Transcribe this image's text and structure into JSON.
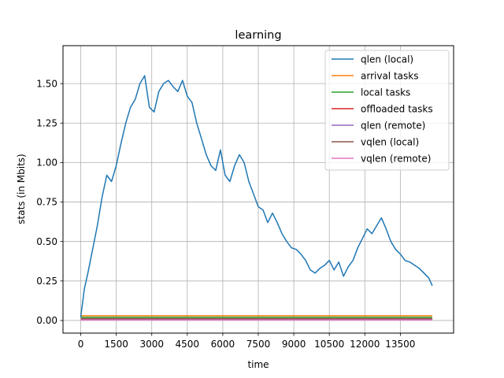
{
  "chart_data": {
    "type": "line",
    "title": "learning",
    "xlabel": "time",
    "ylabel": "stats (in Mbits)",
    "xlim": [
      -750,
      15750
    ],
    "ylim": [
      -0.08,
      1.74
    ],
    "xticks": [
      0,
      1500,
      3000,
      4500,
      6000,
      7500,
      9000,
      10500,
      12000,
      13500
    ],
    "xtick_labels": [
      "0",
      "1500",
      "3000",
      "4500",
      "6000",
      "7500",
      "9000",
      "10500",
      "12000",
      "13500"
    ],
    "yticks": [
      0.0,
      0.25,
      0.5,
      0.75,
      1.0,
      1.25,
      1.5
    ],
    "ytick_labels": [
      "0.00",
      "0.25",
      "0.50",
      "0.75",
      "1.00",
      "1.25",
      "1.50"
    ],
    "grid": true,
    "legend_position": "top-right",
    "series": [
      {
        "name": "qlen (local)",
        "color": "#1f77b4",
        "x": [
          0,
          150,
          300,
          500,
          700,
          900,
          1100,
          1300,
          1500,
          1700,
          1900,
          2100,
          2300,
          2500,
          2700,
          2900,
          3100,
          3300,
          3500,
          3700,
          3900,
          4100,
          4300,
          4500,
          4700,
          4900,
          5100,
          5300,
          5500,
          5700,
          5900,
          6100,
          6300,
          6500,
          6700,
          6900,
          7100,
          7300,
          7500,
          7700,
          7900,
          8100,
          8300,
          8500,
          8700,
          8900,
          9100,
          9300,
          9500,
          9700,
          9900,
          10100,
          10300,
          10500,
          10700,
          10900,
          11100,
          11300,
          11500,
          11700,
          11900,
          12100,
          12300,
          12500,
          12700,
          12900,
          13100,
          13300,
          13500,
          13700,
          13900,
          14100,
          14300,
          14500,
          14700,
          14850
        ],
        "values": [
          0.02,
          0.2,
          0.3,
          0.45,
          0.6,
          0.78,
          0.92,
          0.88,
          0.98,
          1.12,
          1.25,
          1.35,
          1.4,
          1.5,
          1.55,
          1.35,
          1.32,
          1.45,
          1.5,
          1.52,
          1.48,
          1.45,
          1.52,
          1.42,
          1.38,
          1.25,
          1.15,
          1.05,
          0.98,
          0.95,
          1.08,
          0.92,
          0.88,
          0.98,
          1.05,
          1.0,
          0.88,
          0.8,
          0.72,
          0.7,
          0.62,
          0.68,
          0.62,
          0.55,
          0.5,
          0.46,
          0.45,
          0.42,
          0.38,
          0.32,
          0.3,
          0.33,
          0.35,
          0.38,
          0.32,
          0.37,
          0.28,
          0.34,
          0.38,
          0.46,
          0.52,
          0.58,
          0.55,
          0.6,
          0.65,
          0.58,
          0.5,
          0.45,
          0.42,
          0.38,
          0.37,
          0.35,
          0.33,
          0.3,
          0.27,
          0.22
        ]
      },
      {
        "name": "arrival tasks",
        "color": "#ff7f0e",
        "x": [
          0,
          14850
        ],
        "values": [
          0.03,
          0.03
        ]
      },
      {
        "name": "local tasks",
        "color": "#2ca02c",
        "x": [
          0,
          14850
        ],
        "values": [
          0.02,
          0.02
        ]
      },
      {
        "name": "offloaded tasks",
        "color": "#d62728",
        "x": [
          0,
          14850
        ],
        "values": [
          0.01,
          0.01
        ]
      },
      {
        "name": "qlen (remote)",
        "color": "#9467bd",
        "x": [
          0,
          14850
        ],
        "values": [
          0.005,
          0.005
        ]
      },
      {
        "name": "vqlen (local)",
        "color": "#8c564b",
        "x": [
          0,
          14850
        ],
        "values": [
          0.012,
          0.012
        ]
      },
      {
        "name": "vqlen (remote)",
        "color": "#e377c2",
        "x": [
          0,
          14850
        ],
        "values": [
          0.003,
          0.003
        ]
      }
    ]
  }
}
